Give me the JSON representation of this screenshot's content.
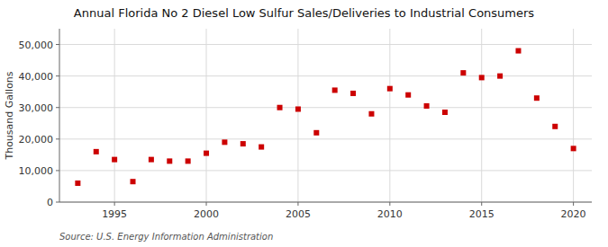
{
  "chart_data": {
    "type": "scatter",
    "title": "Annual Florida No 2 Diesel Low Sulfur Sales/Deliveries to Industrial Consumers",
    "y_label": "Thousand Gallons",
    "source": "Source: U.S. Energy Information Administration",
    "x": [
      1993,
      1994,
      1995,
      1996,
      1997,
      1998,
      1999,
      2000,
      2001,
      2002,
      2003,
      2004,
      2005,
      2006,
      2007,
      2008,
      2009,
      2010,
      2011,
      2012,
      2013,
      2014,
      2015,
      2016,
      2017,
      2018,
      2019,
      2020
    ],
    "values": [
      6000,
      16000,
      13500,
      6500,
      13500,
      13000,
      13000,
      15500,
      19000,
      18500,
      17500,
      30000,
      29500,
      22000,
      35500,
      34500,
      28000,
      36000,
      34000,
      30500,
      28500,
      41000,
      39500,
      40000,
      48000,
      33000,
      24000,
      17000
    ],
    "color": "#cc0000",
    "marker": "square",
    "xlim": [
      1992,
      2021
    ],
    "xticks": [
      1995,
      2000,
      2005,
      2010,
      2015,
      2020
    ],
    "ylim": [
      0,
      55000
    ],
    "yticks": [
      0,
      {
        "value": 10000,
        "label": "10,000"
      },
      {
        "value": 20000,
        "label": "20,000"
      },
      {
        "value": 30000,
        "label": "30,000"
      },
      {
        "value": 40000,
        "label": "40,000"
      },
      {
        "value": 50000,
        "label": "50,000"
      }
    ],
    "grid": true
  }
}
